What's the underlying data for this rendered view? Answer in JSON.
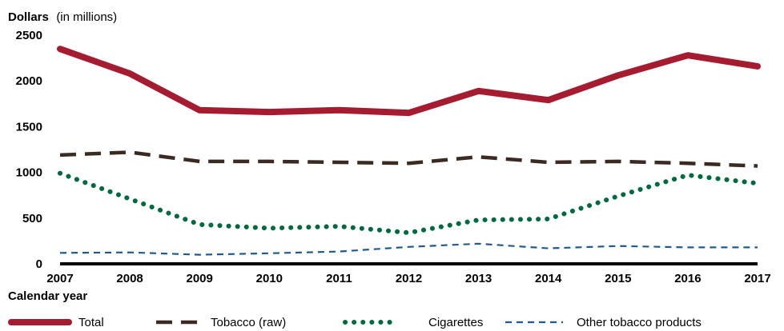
{
  "chart_data": {
    "type": "line",
    "ylabel_bold": "Dollars",
    "ylabel_unit": "(in millions)",
    "xlabel": "Calendar year",
    "ylim": [
      0,
      2500
    ],
    "y_ticks": [
      "0",
      "500",
      "1000",
      "1500",
      "2000",
      "2500"
    ],
    "x": [
      "2007",
      "2008",
      "2009",
      "2010",
      "2011",
      "2012",
      "2013",
      "2014",
      "2015",
      "2016",
      "2017"
    ],
    "grid": false,
    "legend_position": "bottom",
    "series": [
      {
        "name": "Total",
        "color": "#a51b30",
        "style": "thick",
        "values": [
          2350,
          2080,
          1680,
          1660,
          1680,
          1650,
          1890,
          1790,
          2060,
          2280,
          2160
        ]
      },
      {
        "name": "Tobacco (raw)",
        "color": "#3b2a22",
        "style": "dashed",
        "values": [
          1190,
          1220,
          1120,
          1120,
          1110,
          1100,
          1170,
          1110,
          1120,
          1100,
          1070
        ]
      },
      {
        "name": "Cigarettes",
        "color": "#006a3f",
        "style": "dotted",
        "values": [
          990,
          710,
          430,
          390,
          410,
          340,
          480,
          490,
          740,
          970,
          880
        ]
      },
      {
        "name": "Other tobacco products",
        "color": "#1f5a8e",
        "style": "fine-dashed",
        "values": [
          120,
          125,
          100,
          115,
          135,
          185,
          220,
          170,
          195,
          180,
          180
        ]
      }
    ]
  }
}
